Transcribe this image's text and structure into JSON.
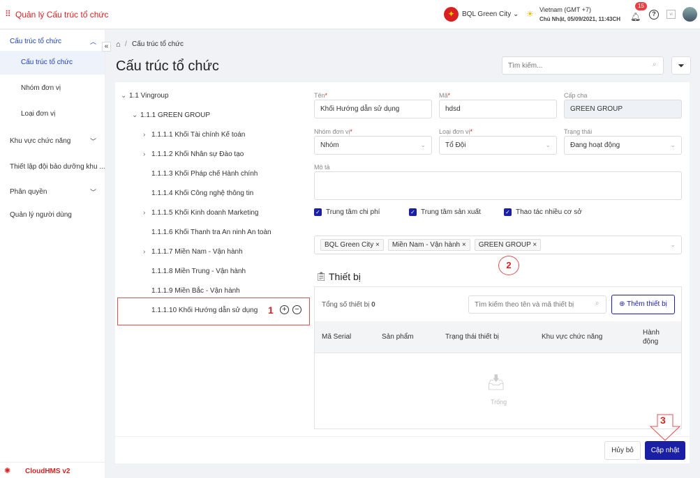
{
  "header": {
    "app_title": "Quản lý Cấu trúc tổ chức",
    "org": "BQL Green City",
    "timezone": "Vietnam (GMT +7)",
    "datetime": "Chủ Nhật, 05/09/2021, 11:43CH",
    "notif_count": "15",
    "lang": "vi"
  },
  "sidebar": {
    "items": [
      {
        "label": "Cấu trúc tổ chức",
        "expanded": true
      },
      {
        "label": "Cấu trúc tổ chức",
        "active": true
      },
      {
        "label": "Nhóm đơn vị"
      },
      {
        "label": "Loại đơn vị"
      },
      {
        "label": "Khu vực chức năng"
      },
      {
        "label": "Thiết lập đội bảo dưỡng khu ..."
      },
      {
        "label": "Phân quyền"
      },
      {
        "label": "Quản lý người dùng"
      }
    ],
    "footer": "CloudHMS v2"
  },
  "breadcrumb": {
    "current": "Cấu trúc tổ chức"
  },
  "page": {
    "title": "Cấu trúc tổ chức",
    "search_placeholder": "Tìm kiếm..."
  },
  "tree": [
    {
      "label": "1.1 Vingroup",
      "expanded": true
    },
    {
      "label": "1.1.1 GREEN GROUP",
      "expanded": true
    },
    {
      "label": "1.1.1.1 Khối Tài chính Kế toán",
      "children": true
    },
    {
      "label": "1.1.1.2 Khối Nhân sự Đào tạo",
      "children": true
    },
    {
      "label": "1.1.1.3 Khối Pháp chế Hành chính"
    },
    {
      "label": "1.1.1.4 Khối Công nghệ thông tin"
    },
    {
      "label": "1.1.1.5 Khối Kinh doanh Marketing",
      "children": true
    },
    {
      "label": "1.1.1.6 Khối Thanh tra An ninh An toàn"
    },
    {
      "label": "1.1.1.7 Miền Nam - Vận hành",
      "children": true
    },
    {
      "label": "1.1.1.8 Miền Trung - Vận hành"
    },
    {
      "label": "1.1.1.9 Miền Bắc - Vận hành"
    },
    {
      "label": "1.1.1.10 Khối Hướng dẫn sử dụng",
      "selected": true
    }
  ],
  "annotations": [
    "1",
    "2",
    "3"
  ],
  "form": {
    "name_label": "Tên",
    "name_value": "Khối Hướng dẫn sử dụng",
    "code_label": "Mã",
    "code_value": "hdsd",
    "parent_label": "Cấp cha",
    "parent_value": "GREEN GROUP",
    "group_label": "Nhóm đơn vị",
    "group_value": "Nhóm",
    "type_label": "Loại đơn vị",
    "type_value": "Tổ Đội",
    "status_label": "Trạng thái",
    "status_value": "Đang hoạt động",
    "desc_label": "Mô tả",
    "desc_value": "",
    "checkboxes": [
      {
        "label": "Trung tâm chi phí",
        "checked": true
      },
      {
        "label": "Trung tâm sản xuất",
        "checked": true
      },
      {
        "label": "Thao tác nhiều cơ sở",
        "checked": true
      }
    ],
    "tags": [
      "BQL Green City",
      "Miền Nam - Vận hành",
      "GREEN GROUP"
    ]
  },
  "devices": {
    "title": "Thiết bị",
    "total_label": "Tổng số thiết bị",
    "total": "0",
    "search_placeholder": "Tìm kiếm theo tên và mã thiết bị",
    "add_label": "Thêm thiết bị",
    "columns": [
      "Mã Serial",
      "Sản phẩm",
      "Trạng thái thiết bị",
      "Khu vực chức năng",
      "Hành động"
    ],
    "empty": "Trống"
  },
  "actions": {
    "cancel": "Hủy bỏ",
    "update": "Cập nhật"
  },
  "colors": {
    "primary": "#1a1fa6",
    "brand_red": "#d92020"
  }
}
